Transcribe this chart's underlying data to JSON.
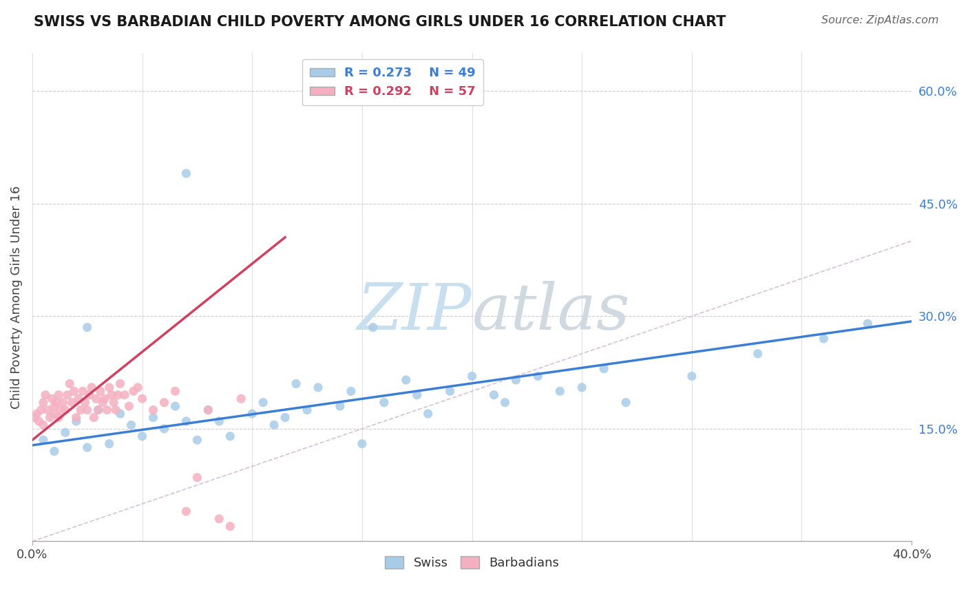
{
  "title": "SWISS VS BARBADIAN CHILD POVERTY AMONG GIRLS UNDER 16 CORRELATION CHART",
  "source": "Source: ZipAtlas.com",
  "ylabel": "Child Poverty Among Girls Under 16",
  "yticks": [
    0.0,
    0.15,
    0.3,
    0.45,
    0.6
  ],
  "ytick_labels": [
    "",
    "15.0%",
    "30.0%",
    "45.0%",
    "60.0%"
  ],
  "xlim": [
    0.0,
    0.4
  ],
  "ylim": [
    0.0,
    0.65
  ],
  "swiss_R": 0.273,
  "swiss_N": 49,
  "barbadian_R": 0.292,
  "barbadian_N": 57,
  "swiss_color": "#a8cce8",
  "barbadian_color": "#f4b0c0",
  "swiss_line_color": "#3a7fd5",
  "barbadian_line_color": "#d04060",
  "ref_line_color": "#d8c0d8",
  "watermark_color": "#d5e5f0",
  "background_color": "#ffffff",
  "swiss_x": [
    0.005,
    0.01,
    0.015,
    0.02,
    0.025,
    0.03,
    0.035,
    0.04,
    0.045,
    0.05,
    0.055,
    0.06,
    0.065,
    0.07,
    0.075,
    0.08,
    0.085,
    0.09,
    0.1,
    0.105,
    0.11,
    0.115,
    0.12,
    0.125,
    0.13,
    0.14,
    0.145,
    0.15,
    0.16,
    0.17,
    0.175,
    0.18,
    0.19,
    0.2,
    0.21,
    0.215,
    0.22,
    0.23,
    0.24,
    0.25,
    0.26,
    0.27,
    0.3,
    0.33,
    0.36,
    0.38,
    0.025,
    0.07,
    0.155
  ],
  "swiss_y": [
    0.135,
    0.12,
    0.145,
    0.16,
    0.125,
    0.175,
    0.13,
    0.17,
    0.155,
    0.14,
    0.165,
    0.15,
    0.18,
    0.16,
    0.135,
    0.175,
    0.16,
    0.14,
    0.17,
    0.185,
    0.155,
    0.165,
    0.21,
    0.175,
    0.205,
    0.18,
    0.2,
    0.13,
    0.185,
    0.215,
    0.195,
    0.17,
    0.2,
    0.22,
    0.195,
    0.185,
    0.215,
    0.22,
    0.2,
    0.205,
    0.23,
    0.185,
    0.22,
    0.25,
    0.27,
    0.29,
    0.285,
    0.49,
    0.285
  ],
  "barbadian_x": [
    0.001,
    0.002,
    0.003,
    0.004,
    0.005,
    0.005,
    0.006,
    0.007,
    0.008,
    0.009,
    0.01,
    0.01,
    0.011,
    0.012,
    0.012,
    0.013,
    0.014,
    0.015,
    0.016,
    0.017,
    0.018,
    0.019,
    0.02,
    0.021,
    0.022,
    0.023,
    0.024,
    0.025,
    0.026,
    0.027,
    0.028,
    0.029,
    0.03,
    0.031,
    0.032,
    0.033,
    0.034,
    0.035,
    0.036,
    0.037,
    0.038,
    0.039,
    0.04,
    0.042,
    0.044,
    0.046,
    0.048,
    0.05,
    0.055,
    0.06,
    0.065,
    0.07,
    0.075,
    0.08,
    0.085,
    0.09,
    0.095
  ],
  "barbadian_y": [
    0.165,
    0.17,
    0.16,
    0.175,
    0.185,
    0.155,
    0.195,
    0.175,
    0.165,
    0.19,
    0.18,
    0.17,
    0.185,
    0.195,
    0.165,
    0.175,
    0.185,
    0.175,
    0.195,
    0.21,
    0.185,
    0.2,
    0.165,
    0.19,
    0.175,
    0.2,
    0.185,
    0.175,
    0.195,
    0.205,
    0.165,
    0.19,
    0.175,
    0.2,
    0.185,
    0.19,
    0.175,
    0.205,
    0.195,
    0.185,
    0.175,
    0.195,
    0.21,
    0.195,
    0.18,
    0.2,
    0.205,
    0.19,
    0.175,
    0.185,
    0.2,
    0.04,
    0.085,
    0.175,
    0.03,
    0.02,
    0.19
  ],
  "barb_line_x0": 0.0,
  "barb_line_x1": 0.115,
  "barb_line_y0": 0.135,
  "barb_line_y1": 0.405,
  "swiss_line_x0": 0.0,
  "swiss_line_x1": 0.4,
  "swiss_line_y0": 0.128,
  "swiss_line_y1": 0.293
}
